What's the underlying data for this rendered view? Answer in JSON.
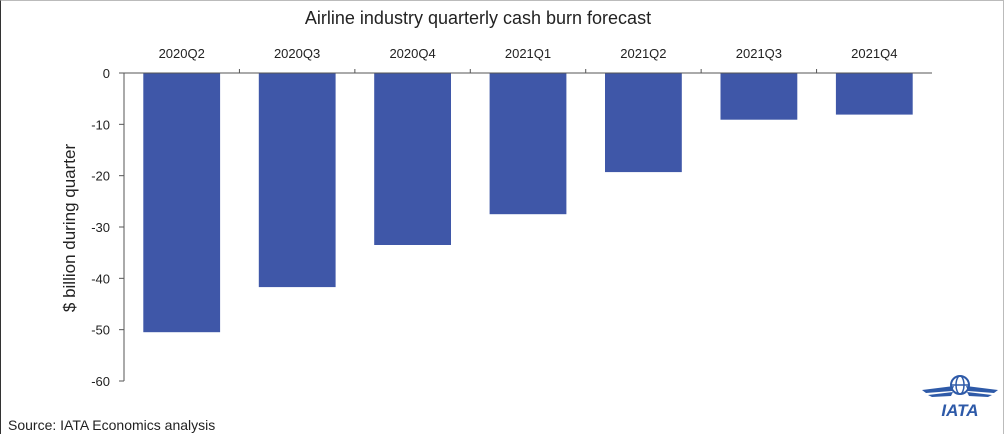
{
  "chart_data": {
    "type": "bar",
    "title": "Airline industry quarterly cash burn forecast",
    "ylabel": "$ billion during quarter",
    "xlabel": "",
    "categories": [
      "2020Q2",
      "2020Q3",
      "2020Q4",
      "2021Q1",
      "2021Q2",
      "2021Q3",
      "2021Q4"
    ],
    "values": [
      -50.5,
      -41.7,
      -33.5,
      -27.5,
      -19.3,
      -9.1,
      -8.1
    ],
    "ylim": [
      -60,
      0
    ],
    "yticks": [
      0,
      -10,
      -20,
      -30,
      -40,
      -50,
      -60
    ],
    "bar_color": "#3F57A8",
    "category_axis_position": "top",
    "grid": false,
    "legend": "none"
  },
  "source": "Source: IATA Economics analysis",
  "logo": {
    "text": "IATA",
    "icon": "globe-wings-logo",
    "color": "#2E5AA8"
  }
}
